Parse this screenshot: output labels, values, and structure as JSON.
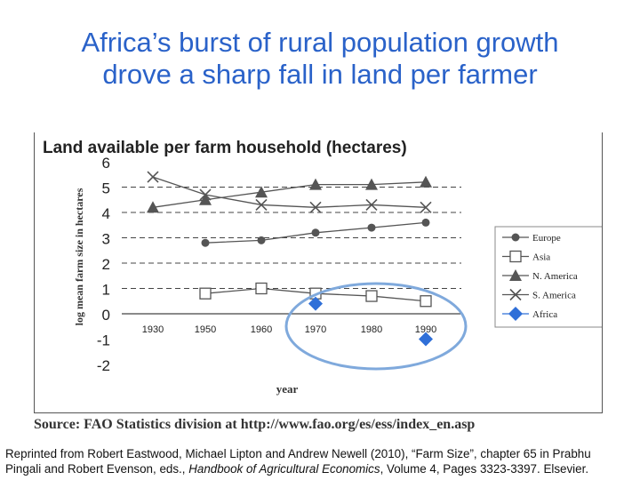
{
  "slide": {
    "title_line1": "Africa’s burst of rural population growth",
    "title_line2": "drove a sharp fall in land per farmer"
  },
  "chart_data": {
    "type": "line",
    "title": "Land available per farm household (hectares)",
    "xlabel": "year",
    "ylabel": "log mean farm size in hectares",
    "ylim": [
      -2,
      6
    ],
    "yticks": [
      6,
      5,
      4,
      3,
      2,
      1,
      0,
      -1,
      -2
    ],
    "xticks": [
      "1930",
      "1950",
      "1960",
      "1970",
      "1980",
      "1990"
    ],
    "grid": "horizontal dashed",
    "legend": "right",
    "series": [
      {
        "name": "Europe",
        "marker": "circle",
        "color": "#555555",
        "x": [
          "1950",
          "1960",
          "1970",
          "1980",
          "1990"
        ],
        "values": [
          2.8,
          2.9,
          3.2,
          3.4,
          3.6
        ]
      },
      {
        "name": "Asia",
        "marker": "square-open",
        "color": "#555555",
        "x": [
          "1950",
          "1960",
          "1970",
          "1980",
          "1990"
        ],
        "values": [
          0.8,
          1.0,
          0.8,
          0.7,
          0.5
        ]
      },
      {
        "name": "N. America",
        "marker": "triangle",
        "color": "#555555",
        "x": [
          "1930",
          "1950",
          "1960",
          "1970",
          "1980",
          "1990"
        ],
        "values": [
          4.2,
          4.5,
          4.8,
          5.1,
          5.1,
          5.2
        ]
      },
      {
        "name": "S. America",
        "marker": "x",
        "color": "#555555",
        "x": [
          "1930",
          "1950",
          "1960",
          "1970",
          "1980",
          "1990"
        ],
        "values": [
          5.4,
          4.7,
          4.3,
          4.2,
          4.3,
          4.2
        ]
      },
      {
        "name": "Africa",
        "marker": "diamond",
        "color": "#2f6fd8",
        "x": [
          "1970",
          "1990"
        ],
        "values": [
          0.4,
          -1.0
        ]
      }
    ],
    "highlight_color": "#7fa9dc"
  },
  "source": {
    "text": "Source: FAO Statistics division at http://www.fao.org/es/ess/index_en.asp"
  },
  "citation": {
    "line1": "Reprinted from Robert Eastwood, Michael Lipton and Andrew Newell (2010), “Farm Size”, chapter 65 in Prabhu",
    "line2_prefix": "Pingali and Robert Evenson, eds., ",
    "line2_italic": "Handbook of Agricultural Economics",
    "line2_suffix": ", Volume 4, Pages 3323-3397. Elsevier."
  }
}
